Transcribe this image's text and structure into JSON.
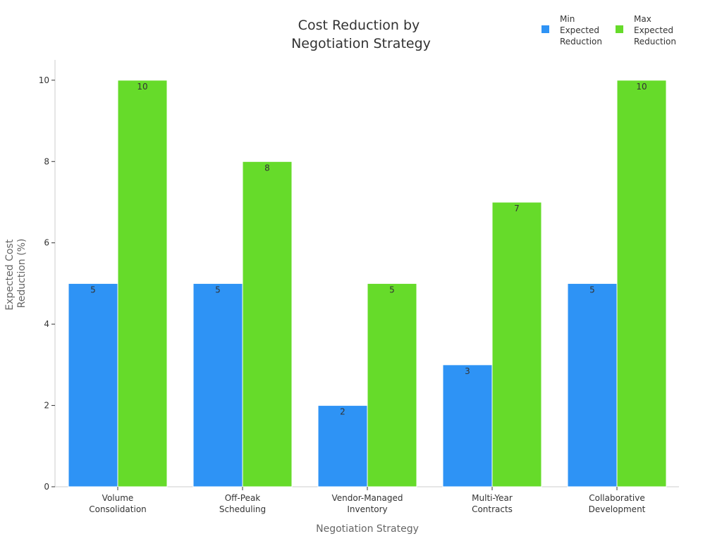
{
  "chart_data": {
    "type": "bar",
    "title": "Cost Reduction by Negotiation Strategy",
    "title_lines": [
      "Cost Reduction by",
      "Negotiation Strategy"
    ],
    "xlabel": "Negotiation Strategy",
    "ylabel_lines": [
      "Expected Cost",
      "Reduction (%)"
    ],
    "categories": [
      "Volume Consolidation",
      "Off-Peak Scheduling",
      "Vendor-Managed Inventory",
      "Multi-Year Contracts",
      "Collaborative Development"
    ],
    "category_lines": [
      [
        "Volume",
        "Consolidation"
      ],
      [
        "Off-Peak",
        "Scheduling"
      ],
      [
        "Vendor-Managed",
        "Inventory"
      ],
      [
        "Multi-Year",
        "Contracts"
      ],
      [
        "Collaborative",
        "Development"
      ]
    ],
    "series": [
      {
        "name": "Min Expected Reduction",
        "name_lines": [
          "Min",
          "Expected",
          "Reduction"
        ],
        "values": [
          5,
          5,
          2,
          3,
          5
        ],
        "color": "#2e93f5"
      },
      {
        "name": "Max Expected Reduction",
        "name_lines": [
          "Max",
          "Expected",
          "Reduction"
        ],
        "values": [
          10,
          8,
          5,
          7,
          10
        ],
        "color": "#66db2a"
      }
    ],
    "ylim": [
      0,
      10.5
    ],
    "yticks": [
      0,
      2,
      4,
      6,
      8,
      10
    ],
    "grid": false,
    "legend": "top-right"
  }
}
